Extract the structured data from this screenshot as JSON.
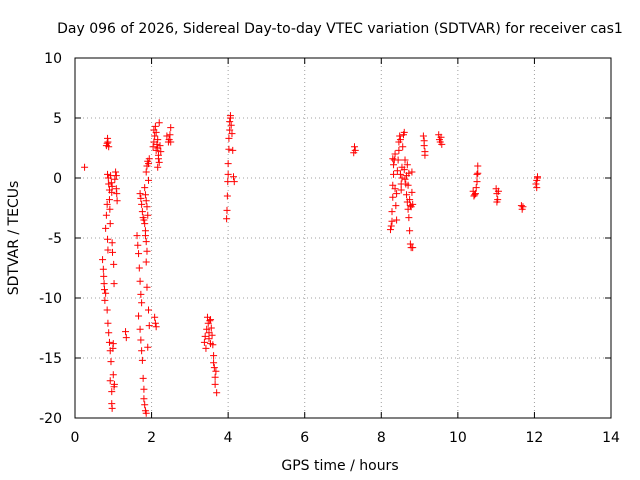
{
  "colors": {
    "points": "#ff0000",
    "frame": "#000000",
    "grid": "#a0a0a0"
  },
  "chart_data": {
    "type": "scatter",
    "title": "Day 096 of 2026, Sidereal Day-to-day VTEC variation (SDTVAR) for receiver cas1",
    "xlabel": "GPS time / hours",
    "ylabel": "SDTVAR / TECUs",
    "xlim": [
      0,
      14
    ],
    "ylim": [
      -20,
      10
    ],
    "xticks": [
      0,
      2,
      4,
      6,
      8,
      10,
      12,
      14
    ],
    "yticks": [
      -20,
      -15,
      -10,
      -5,
      0,
      5,
      10
    ],
    "xtick_labels": [
      "0",
      "2",
      "4",
      "6",
      "8",
      "10",
      "12",
      "14"
    ],
    "ytick_labels": [
      "-20",
      "-15",
      "-10",
      "-5",
      "0",
      "5",
      "10"
    ],
    "grid": true,
    "marker": "+",
    "series": [
      {
        "name": "cas1",
        "points": [
          [
            0.25,
            0.9
          ],
          [
            0.72,
            -6.8
          ],
          [
            0.74,
            -7.6
          ],
          [
            0.75,
            -8.2
          ],
          [
            0.76,
            -8.8
          ],
          [
            0.77,
            -9.3
          ],
          [
            0.78,
            -10.2
          ],
          [
            0.8,
            -9.6
          ],
          [
            0.8,
            -4.2
          ],
          [
            0.82,
            -3.1
          ],
          [
            0.84,
            -2.2
          ],
          [
            0.85,
            -5.1
          ],
          [
            0.86,
            -6.0
          ],
          [
            0.84,
            -11.0
          ],
          [
            0.86,
            -12.1
          ],
          [
            0.82,
            2.7
          ],
          [
            0.84,
            2.9
          ],
          [
            0.85,
            3.3
          ],
          [
            0.86,
            3.0
          ],
          [
            0.88,
            2.6
          ],
          [
            0.85,
            0.3
          ],
          [
            0.87,
            0.0
          ],
          [
            0.88,
            -0.5
          ],
          [
            0.9,
            -1.0
          ],
          [
            0.91,
            -2.6
          ],
          [
            0.92,
            -3.8
          ],
          [
            0.9,
            -1.8
          ],
          [
            0.88,
            -12.9
          ],
          [
            0.9,
            -13.7
          ],
          [
            0.92,
            -14.4
          ],
          [
            0.94,
            -15.3
          ],
          [
            0.92,
            -16.9
          ],
          [
            0.96,
            -17.8
          ],
          [
            0.93,
            0.2
          ],
          [
            0.95,
            -0.4
          ],
          [
            0.96,
            -1.2
          ],
          [
            0.97,
            -0.7
          ],
          [
            0.98,
            -6.2
          ],
          [
            0.97,
            -5.4
          ],
          [
            0.96,
            -18.8
          ],
          [
            0.97,
            -19.2
          ],
          [
            0.99,
            -14.2
          ],
          [
            1.0,
            -13.8
          ],
          [
            1.01,
            -7.2
          ],
          [
            1.02,
            -8.8
          ],
          [
            1.0,
            -16.4
          ],
          [
            1.02,
            -17.4
          ],
          [
            1.03,
            -17.2
          ],
          [
            1.04,
            -0.1
          ],
          [
            1.06,
            0.5
          ],
          [
            1.08,
            -0.9
          ],
          [
            1.09,
            -1.3
          ],
          [
            1.1,
            -1.9
          ],
          [
            1.08,
            0.2
          ],
          [
            1.32,
            -12.8
          ],
          [
            1.34,
            -13.3
          ],
          [
            1.62,
            -4.8
          ],
          [
            1.64,
            -5.6
          ],
          [
            1.66,
            -6.3
          ],
          [
            1.68,
            -7.5
          ],
          [
            1.7,
            -8.6
          ],
          [
            1.72,
            -9.7
          ],
          [
            1.74,
            -10.4
          ],
          [
            1.66,
            -11.5
          ],
          [
            1.7,
            -12.6
          ],
          [
            1.72,
            -13.5
          ],
          [
            1.74,
            -14.4
          ],
          [
            1.76,
            -15.2
          ],
          [
            1.78,
            -16.7
          ],
          [
            1.8,
            -17.6
          ],
          [
            1.8,
            -18.4
          ],
          [
            1.82,
            -18.9
          ],
          [
            1.84,
            -19.4
          ],
          [
            1.86,
            -19.6
          ],
          [
            1.7,
            -1.3
          ],
          [
            1.72,
            -1.7
          ],
          [
            1.74,
            -2.2
          ],
          [
            1.76,
            -2.8
          ],
          [
            1.78,
            -3.3
          ],
          [
            1.8,
            -3.5
          ],
          [
            1.82,
            -3.8
          ],
          [
            1.84,
            -4.4
          ],
          [
            1.84,
            -4.8
          ],
          [
            1.86,
            -5.3
          ],
          [
            1.88,
            -6.1
          ],
          [
            1.86,
            -7.0
          ],
          [
            1.88,
            -9.1
          ],
          [
            1.82,
            -0.8
          ],
          [
            1.84,
            -1.4
          ],
          [
            1.86,
            -1.9
          ],
          [
            1.88,
            -2.4
          ],
          [
            1.9,
            -3.1
          ],
          [
            1.86,
            0.5
          ],
          [
            1.88,
            1.0
          ],
          [
            1.9,
            1.4
          ],
          [
            1.92,
            1.2
          ],
          [
            1.94,
            1.6
          ],
          [
            1.92,
            -0.2
          ],
          [
            1.92,
            -11.0
          ],
          [
            1.94,
            -12.3
          ],
          [
            1.9,
            -14.1
          ],
          [
            2.04,
            2.6
          ],
          [
            2.06,
            3.0
          ],
          [
            2.08,
            3.5
          ],
          [
            2.06,
            4.0
          ],
          [
            2.1,
            4.3
          ],
          [
            2.12,
            3.8
          ],
          [
            2.14,
            2.8
          ],
          [
            2.12,
            2.3
          ],
          [
            2.16,
            2.5
          ],
          [
            2.18,
            1.6
          ],
          [
            2.2,
            1.3
          ],
          [
            2.16,
            0.9
          ],
          [
            2.18,
            1.9
          ],
          [
            2.2,
            4.6
          ],
          [
            2.16,
            3.2
          ],
          [
            2.22,
            2.7
          ],
          [
            2.24,
            2.2
          ],
          [
            2.08,
            -11.6
          ],
          [
            2.1,
            -12.1
          ],
          [
            2.12,
            -12.4
          ],
          [
            2.4,
            3.5
          ],
          [
            2.44,
            3.0
          ],
          [
            2.46,
            3.2
          ],
          [
            2.48,
            3.6
          ],
          [
            2.5,
            4.2
          ],
          [
            2.5,
            3.0
          ],
          [
            3.38,
            -13.7
          ],
          [
            3.4,
            -13.2
          ],
          [
            3.42,
            -14.2
          ],
          [
            3.44,
            -12.6
          ],
          [
            3.46,
            -11.6
          ],
          [
            3.48,
            -12.1
          ],
          [
            3.5,
            -12.9
          ],
          [
            3.5,
            -13.4
          ],
          [
            3.52,
            -11.9
          ],
          [
            3.54,
            -11.8
          ],
          [
            3.54,
            -13.8
          ],
          [
            3.56,
            -12.5
          ],
          [
            3.58,
            -13.1
          ],
          [
            3.6,
            -13.9
          ],
          [
            3.62,
            -14.8
          ],
          [
            3.62,
            -15.4
          ],
          [
            3.64,
            -15.8
          ],
          [
            3.66,
            -16.6
          ],
          [
            3.66,
            -17.2
          ],
          [
            3.68,
            -16.1
          ],
          [
            3.7,
            -17.9
          ],
          [
            3.96,
            -3.4
          ],
          [
            3.97,
            -2.7
          ],
          [
            3.98,
            -1.5
          ],
          [
            3.99,
            -0.3
          ],
          [
            4.0,
            0.3
          ],
          [
            4.0,
            1.2
          ],
          [
            4.02,
            2.4
          ],
          [
            4.02,
            3.3
          ],
          [
            4.04,
            4.0
          ],
          [
            4.04,
            4.7
          ],
          [
            4.06,
            5.0
          ],
          [
            4.06,
            5.2
          ],
          [
            4.08,
            4.4
          ],
          [
            4.1,
            3.7
          ],
          [
            4.12,
            2.3
          ],
          [
            4.14,
            0.1
          ],
          [
            4.16,
            -0.3
          ],
          [
            7.28,
            2.1
          ],
          [
            7.3,
            2.6
          ],
          [
            7.32,
            2.3
          ],
          [
            8.24,
            -4.3
          ],
          [
            8.26,
            -4.0
          ],
          [
            8.28,
            -3.6
          ],
          [
            8.28,
            -2.8
          ],
          [
            8.3,
            -1.6
          ],
          [
            8.3,
            -0.6
          ],
          [
            8.32,
            0.3
          ],
          [
            8.32,
            1.1
          ],
          [
            8.34,
            1.5
          ],
          [
            8.36,
            2.0
          ],
          [
            8.3,
            1.6
          ],
          [
            8.36,
            -0.9
          ],
          [
            8.38,
            -2.3
          ],
          [
            8.4,
            -3.5
          ],
          [
            8.4,
            -1.3
          ],
          [
            8.42,
            0.6
          ],
          [
            8.44,
            1.5
          ],
          [
            8.46,
            2.3
          ],
          [
            8.46,
            3.0
          ],
          [
            8.48,
            3.5
          ],
          [
            8.5,
            3.2
          ],
          [
            8.5,
            0.3
          ],
          [
            8.52,
            -0.5
          ],
          [
            8.52,
            -1.0
          ],
          [
            8.54,
            0.0
          ],
          [
            8.54,
            0.9
          ],
          [
            8.56,
            2.6
          ],
          [
            8.58,
            3.6
          ],
          [
            8.6,
            3.8
          ],
          [
            8.6,
            0.7
          ],
          [
            8.62,
            -0.1
          ],
          [
            8.62,
            1.5
          ],
          [
            8.64,
            -0.5
          ],
          [
            8.66,
            -1.4
          ],
          [
            8.66,
            0.2
          ],
          [
            8.68,
            1.1
          ],
          [
            8.68,
            -2.0
          ],
          [
            8.7,
            -2.6
          ],
          [
            8.7,
            -0.6
          ],
          [
            8.72,
            -3.3
          ],
          [
            8.72,
            0.4
          ],
          [
            8.74,
            -4.4
          ],
          [
            8.74,
            -1.8
          ],
          [
            8.76,
            -5.5
          ],
          [
            8.76,
            -2.3
          ],
          [
            8.78,
            -5.8
          ],
          [
            8.78,
            -2.4
          ],
          [
            8.8,
            -1.2
          ],
          [
            8.8,
            0.5
          ],
          [
            8.82,
            -2.2
          ],
          [
            8.82,
            -5.8
          ],
          [
            9.1,
            3.5
          ],
          [
            9.12,
            3.1
          ],
          [
            9.12,
            2.7
          ],
          [
            9.14,
            2.2
          ],
          [
            9.14,
            1.9
          ],
          [
            9.5,
            3.6
          ],
          [
            9.52,
            3.2
          ],
          [
            9.54,
            3.0
          ],
          [
            9.56,
            3.4
          ],
          [
            9.58,
            2.8
          ],
          [
            10.4,
            -1.1
          ],
          [
            10.42,
            -1.5
          ],
          [
            10.44,
            -1.4
          ],
          [
            10.46,
            -1.3
          ],
          [
            10.48,
            -0.8
          ],
          [
            10.5,
            -0.3
          ],
          [
            10.5,
            0.3
          ],
          [
            10.52,
            1.0
          ],
          [
            10.52,
            0.4
          ],
          [
            11.0,
            -0.9
          ],
          [
            11.02,
            -1.3
          ],
          [
            11.04,
            -1.8
          ],
          [
            11.02,
            -2.0
          ],
          [
            11.06,
            -1.1
          ],
          [
            11.66,
            -2.3
          ],
          [
            11.68,
            -2.6
          ],
          [
            11.7,
            -2.4
          ],
          [
            12.04,
            -0.5
          ],
          [
            12.06,
            -0.2
          ],
          [
            12.08,
            0.1
          ],
          [
            12.06,
            -0.8
          ],
          [
            12.08,
            0.0
          ]
        ]
      }
    ]
  }
}
